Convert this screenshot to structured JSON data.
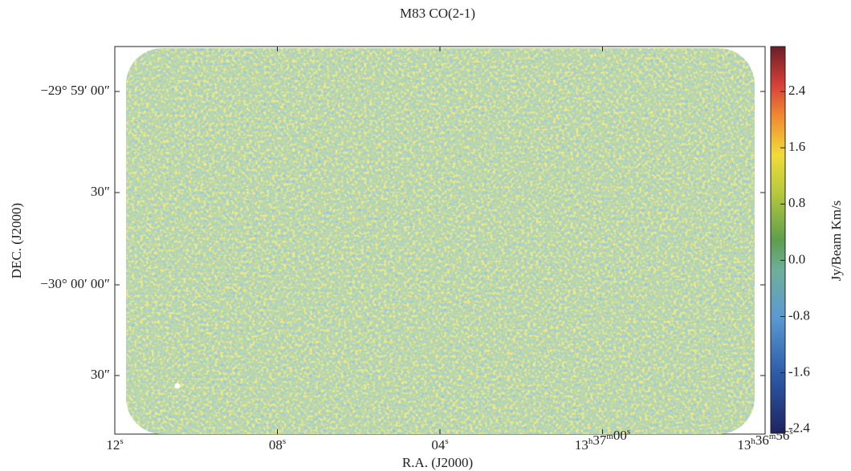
{
  "chart_data": {
    "type": "image",
    "title": "M83 CO(2-1)",
    "x_label": "R.A. (J2000)",
    "y_label": "DEC. (J2000)",
    "colorbar_label": "Jy/Beam Km/s",
    "xticks": [
      [
        {
          "text": "12",
          "sup": "s"
        }
      ],
      [
        {
          "text": "08",
          "sup": "s"
        }
      ],
      [
        {
          "text": "04",
          "sup": "s"
        }
      ],
      [
        {
          "text": "13",
          "sup": "h"
        },
        {
          "text": "37",
          "sup": "m"
        },
        {
          "text": "00",
          "sup": "s"
        }
      ],
      [
        {
          "text": "13",
          "sup": "h"
        },
        {
          "text": "36",
          "sup": "m"
        },
        {
          "text": "56",
          "sup": "s"
        }
      ]
    ],
    "yticks": [
      "−29° 59′ 00″",
      "30″",
      "−30° 00′ 00″",
      "30″"
    ],
    "clim": [
      -2.46,
      3.04
    ],
    "cticks": [
      -2.4,
      -1.6,
      -0.8,
      {
        "value": 0,
        "label": "0.0"
      },
      0.8,
      1.6,
      2.4
    ]
  }
}
